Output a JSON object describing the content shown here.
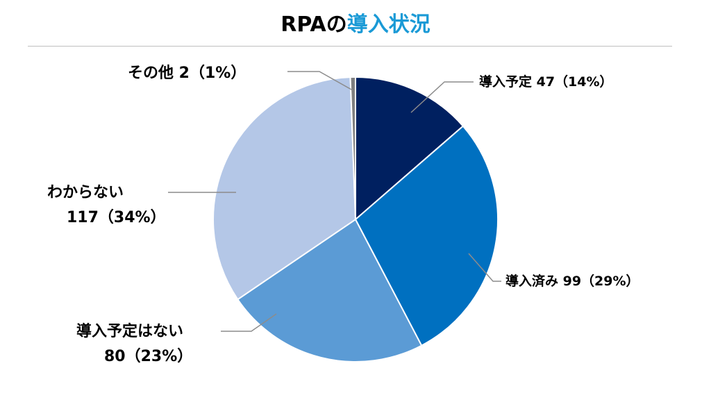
{
  "title": {
    "prefix": "RPAの",
    "accent": "導入状況",
    "accent_color": "#1a9ad6"
  },
  "chart_data": {
    "type": "pie",
    "slices": [
      {
        "name": "導入予定",
        "value": 47,
        "percent": 14,
        "label": "導入予定 47（14%）",
        "color": "#002060"
      },
      {
        "name": "導入済み",
        "value": 99,
        "percent": 29,
        "label": "導入済み 99（29%）",
        "color": "#0070c0"
      },
      {
        "name": "導入予定はない",
        "value": 80,
        "percent": 23,
        "label_line1": "導入予定はない",
        "label_line2": "80（23%）",
        "color": "#5b9bd5"
      },
      {
        "name": "わからない",
        "value": 117,
        "percent": 34,
        "label_line1": "わからない",
        "label_line2": "117（34%）",
        "color": "#b4c7e7"
      },
      {
        "name": "その他",
        "value": 2,
        "percent": 1,
        "label": "その他 2（1%）",
        "color": "#7f7f7f"
      }
    ],
    "start_angle": "12 o'clock",
    "direction": "clockwise",
    "legend": "none"
  }
}
